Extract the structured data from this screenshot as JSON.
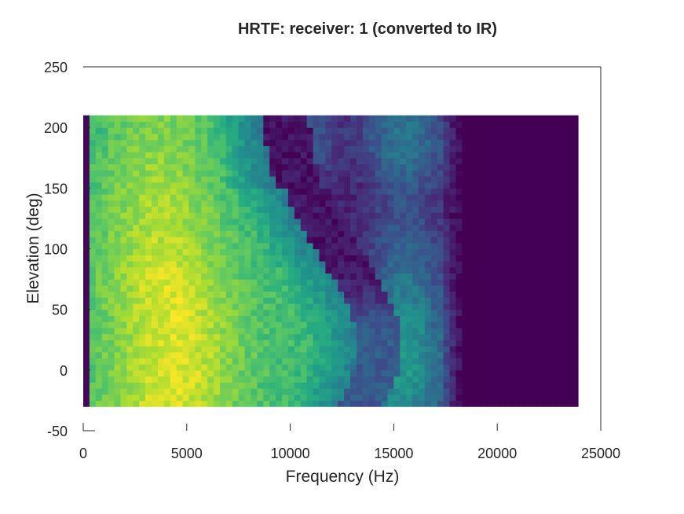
{
  "chart_data": {
    "type": "heatmap",
    "title": "HRTF: receiver: 1 (converted to IR)",
    "xlabel": "Frequency (Hz)",
    "ylabel": "Elevation (deg)",
    "xlim": [
      0,
      25000
    ],
    "ylim": [
      -50,
      250
    ],
    "xticks": [
      "0",
      "5000",
      "10000",
      "15000",
      "20000",
      "25000"
    ],
    "yticks": [
      "-50",
      "0",
      "50",
      "100",
      "150",
      "200",
      "250"
    ],
    "data_extent": {
      "x": [
        0,
        23900
      ],
      "y": [
        -30,
        210
      ]
    },
    "colormap": "viridis",
    "grid": false,
    "colors": {
      "low": "#440154",
      "mid": "#21918c",
      "high": "#fde725"
    }
  }
}
